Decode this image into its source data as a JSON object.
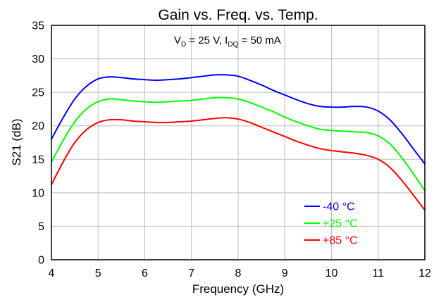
{
  "chart_data": {
    "type": "line",
    "title": "Gain vs. Freq. vs. Temp.",
    "xlabel": "Frequency (GHz)",
    "ylabel": "S21 (dB)",
    "xlim": [
      4,
      12
    ],
    "ylim": [
      0,
      35
    ],
    "x_ticks": [
      4,
      5,
      6,
      7,
      8,
      9,
      10,
      11,
      12
    ],
    "y_ticks": [
      0,
      5,
      10,
      15,
      20,
      25,
      30,
      35
    ],
    "grid": {
      "vertical": true,
      "horizontal": true
    },
    "legend_placement": "bottom-right",
    "annotation": {
      "v_symbol": "V",
      "v_sub": "D",
      "v_value": " = 25 V, ",
      "i_symbol": "I",
      "i_sub": "DQ",
      "i_value": " = 50 mA"
    },
    "x": [
      4.0,
      4.25,
      4.5,
      4.75,
      5.0,
      5.25,
      5.5,
      5.75,
      6.0,
      6.25,
      6.5,
      6.75,
      7.0,
      7.25,
      7.5,
      7.75,
      8.0,
      8.25,
      8.5,
      8.75,
      9.0,
      9.25,
      9.5,
      9.75,
      10.0,
      10.25,
      10.5,
      10.75,
      11.0,
      11.25,
      11.5,
      11.75,
      12.0
    ],
    "series": [
      {
        "name": "-40 °C",
        "color": "#0000ff",
        "values": [
          18.0,
          21.2,
          24.0,
          25.9,
          27.0,
          27.3,
          27.2,
          27.0,
          26.9,
          26.8,
          26.9,
          27.0,
          27.2,
          27.4,
          27.6,
          27.6,
          27.4,
          26.8,
          26.1,
          25.3,
          24.6,
          23.9,
          23.3,
          22.9,
          22.8,
          22.8,
          22.9,
          22.8,
          22.2,
          20.9,
          18.9,
          16.6,
          14.3
        ]
      },
      {
        "name": "+25 °C",
        "color": "#00ff00",
        "values": [
          14.6,
          17.8,
          20.6,
          22.5,
          23.6,
          24.0,
          23.9,
          23.7,
          23.6,
          23.5,
          23.6,
          23.7,
          23.8,
          24.0,
          24.2,
          24.2,
          24.0,
          23.5,
          22.8,
          22.1,
          21.3,
          20.6,
          20.0,
          19.5,
          19.3,
          19.2,
          19.1,
          19.0,
          18.5,
          17.3,
          15.3,
          12.9,
          10.3
        ]
      },
      {
        "name": "+85 °C",
        "color": "#ff0000",
        "values": [
          11.2,
          14.6,
          17.5,
          19.4,
          20.5,
          20.9,
          20.9,
          20.7,
          20.6,
          20.5,
          20.5,
          20.6,
          20.7,
          20.9,
          21.1,
          21.2,
          21.0,
          20.5,
          19.8,
          19.1,
          18.4,
          17.7,
          17.1,
          16.6,
          16.3,
          16.1,
          15.9,
          15.6,
          15.0,
          13.8,
          11.9,
          9.7,
          7.4
        ]
      }
    ]
  }
}
